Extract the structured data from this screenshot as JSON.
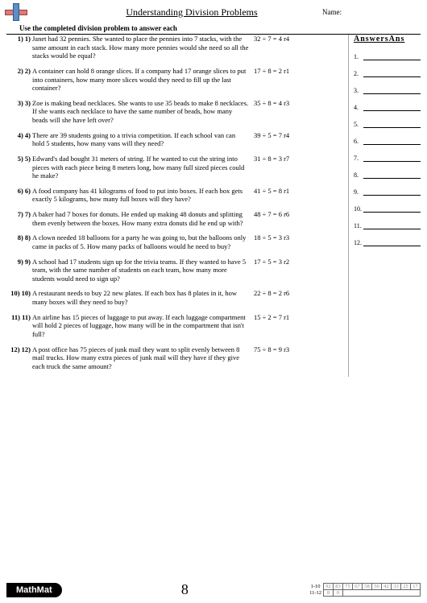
{
  "title": "Understanding Division Problems",
  "name_label": "Name:",
  "instruction": "Use the completed division problem to answer each",
  "answers_header": "AnswersAns",
  "page_number": "8",
  "brand": "MathMat",
  "problems": [
    {
      "n": "1) 1)",
      "t": "Janet had 32 pennies. She wanted to place the pennies into 7 stacks, with the same amount in each stack. How many more pennies would she need so all the stacks would be equal?",
      "e": "32 ÷ 7 = 4 r4"
    },
    {
      "n": "2) 2)",
      "t": "A container can hold 8 orange slices. If a company had 17 orange slices to put into containers, how many more slices would they need to fill up the last container?",
      "e": "17 ÷ 8 = 2 r1"
    },
    {
      "n": "3) 3)",
      "t": "Zoe is making bead necklaces. She wants to use 35 beads to make 8 necklaces. If she wants each necklace to have the same number of beads, how many beads will she have left over?",
      "e": "35 ÷ 8 = 4 r3"
    },
    {
      "n": "4) 4)",
      "t": "There are 39 students going to a trivia competition. If each school van can hold 5 students, how many vans will they need?",
      "e": "39 ÷ 5 = 7 r4"
    },
    {
      "n": "5) 5)",
      "t": "Edward's dad bought 31 meters of string. If he wanted to cut the string into pieces with each piece being 8 meters long, how many full sized pieces could he make?",
      "e": "31 ÷ 8 = 3 r7"
    },
    {
      "n": "6) 6)",
      "t": "A food company has 41 kilograms of food to put into boxes. If each box gets exactly 5 kilograms, how many full boxes will they have?",
      "e": "41 ÷ 5 = 8 r1"
    },
    {
      "n": "7) 7)",
      "t": "A baker had 7 boxes for donuts. He ended up making 48 donuts and splitting them evenly between the boxes. How many extra donuts did he end up with?",
      "e": "48 ÷ 7 = 6 r6"
    },
    {
      "n": "8) 8)",
      "t": "A clown needed 18 balloons for a party he was going to, but the balloons only came in packs of 5. How many packs of balloons would he need to buy?",
      "e": "18 ÷ 5 = 3 r3"
    },
    {
      "n": "9) 9)",
      "t": "A school had 17 students sign up for the trivia teams. If they wanted to have 5 team, with the same number of students on each team, how many more students would need to sign up?",
      "e": "17 ÷ 5 = 3 r2"
    },
    {
      "n": "10) 10)",
      "t": "A restaurant needs to buy 22 new plates. If each box has 8 plates in it, how many boxes will they need to buy?",
      "e": "22 ÷ 8 = 2 r6"
    },
    {
      "n": "11) 11)",
      "t": "An airline has 15 pieces of luggage to put away. If each luggage compartment will hold 2 pieces of luggage, how many will be in the compartment that isn't full?",
      "e": "15 ÷ 2 = 7 r1"
    },
    {
      "n": "12) 12)",
      "t": "A post office has 75 pieces of junk mail they want to split evenly between 8 mail trucks. How many extra pieces of junk mail will they have if they give each truck the same amount?",
      "e": "75 ÷ 8 = 9 r3"
    }
  ],
  "answer_slots": [
    "1.",
    "2.",
    "3.",
    "4.",
    "5.",
    "6.",
    "7.",
    "8.",
    "9.",
    "10.",
    "11.",
    "12."
  ],
  "grid": {
    "row1_label": "1-10",
    "row1": [
      "92",
      "83",
      "75",
      "67",
      "58",
      "50",
      "42",
      "33",
      "25",
      "17"
    ],
    "row2_label": "11-12",
    "row2": [
      "8",
      "0"
    ]
  }
}
